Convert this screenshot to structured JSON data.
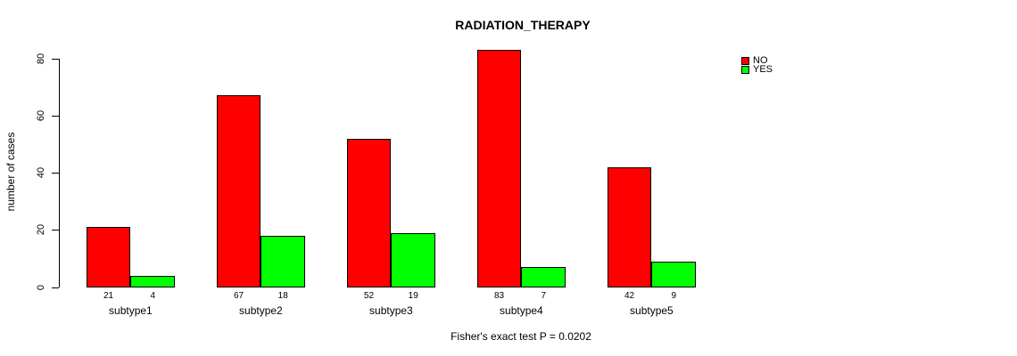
{
  "chart_data": {
    "type": "bar",
    "title": "RADIATION_THERAPY",
    "ylabel": "number of cases",
    "xlabel": "",
    "caption": "Fisher's exact test P = 0.0202",
    "categories": [
      "subtype1",
      "subtype2",
      "subtype3",
      "subtype4",
      "subtype5"
    ],
    "series": [
      {
        "name": "NO",
        "color": "#FF0000",
        "values": [
          21,
          67,
          52,
          83,
          42
        ]
      },
      {
        "name": "YES",
        "color": "#00FF00",
        "values": [
          4,
          18,
          19,
          7,
          9
        ]
      }
    ],
    "yticks": [
      0,
      20,
      40,
      60,
      80
    ],
    "ylim": [
      0,
      80
    ],
    "grid": false,
    "legend_position": "top-right",
    "bar_labels_shown": true
  }
}
